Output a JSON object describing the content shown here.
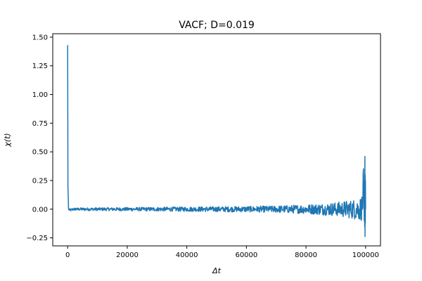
{
  "chart_data": {
    "type": "line",
    "title": "VACF; D=0.019",
    "xlabel": "Δt",
    "ylabel": "χ(t)",
    "xlim": [
      -5000,
      105000
    ],
    "ylim": [
      -0.32,
      1.53
    ],
    "xticks": [
      0,
      20000,
      40000,
      60000,
      80000,
      100000
    ],
    "xtick_labels": [
      "0",
      "20000",
      "40000",
      "60000",
      "80000",
      "100000"
    ],
    "yticks": [
      -0.25,
      0.0,
      0.25,
      0.5,
      0.75,
      1.0,
      1.25,
      1.5
    ],
    "ytick_labels": [
      "−0.25",
      "0.00",
      "0.25",
      "0.50",
      "0.75",
      "1.00",
      "1.25",
      "1.50"
    ],
    "grid": false,
    "series": [
      {
        "color": "#1f77b4",
        "x": [
          0,
          100,
          300,
          800,
          2000,
          5000,
          10000,
          15000,
          20000,
          25000,
          30000,
          35000,
          40000,
          45000,
          50000,
          55000,
          60000,
          65000,
          70000,
          75000,
          80000,
          85000,
          88000,
          90000,
          92000,
          94000,
          96000,
          98000,
          99000,
          99500,
          99800,
          100000
        ],
        "y": [
          1.43,
          0.2,
          0.0,
          -0.01,
          0.0,
          0.0,
          0.0,
          0.0,
          0.0,
          0.0,
          0.0,
          0.0,
          0.0,
          0.0,
          0.0,
          0.0,
          0.0,
          0.0,
          0.0,
          0.0,
          0.0,
          0.0,
          0.0,
          0.0,
          0.0,
          0.0,
          0.0,
          0.0,
          0.02,
          0.46,
          -0.24,
          0.0
        ],
        "noise_envelope": {
          "x": [
            1000,
            20000,
            40000,
            60000,
            70000,
            80000,
            85000,
            90000,
            95000,
            98000,
            99000,
            99500
          ],
          "amplitude": [
            0.012,
            0.015,
            0.02,
            0.025,
            0.03,
            0.04,
            0.05,
            0.06,
            0.08,
            0.1,
            0.12,
            0.15
          ]
        }
      }
    ]
  }
}
